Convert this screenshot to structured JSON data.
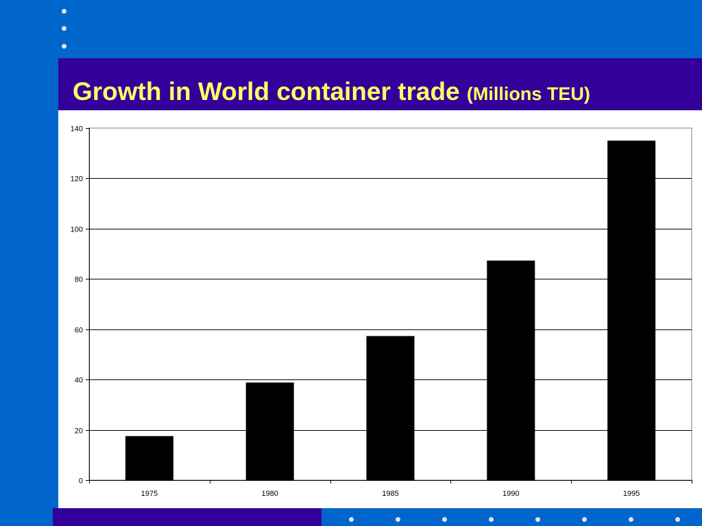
{
  "slide": {
    "title_main": "Growth in World container trade",
    "title_sub": "(Millions TEU)"
  },
  "colors": {
    "background": "#0066CC",
    "title_band": "#330099",
    "title_text": "#FFFF66",
    "bar": "#000000",
    "dot": "#D9E6F5"
  },
  "chart_data": {
    "type": "bar",
    "categories": [
      "1975",
      "1980",
      "1985",
      "1990",
      "1995"
    ],
    "values": [
      17.5,
      38.8,
      57.3,
      87.3,
      135.0
    ],
    "title": "",
    "xlabel": "",
    "ylabel": "",
    "ylim": [
      0,
      140
    ],
    "yticks": [
      0,
      20,
      40,
      60,
      80,
      100,
      120,
      140
    ],
    "grid": true,
    "legend": "none"
  }
}
